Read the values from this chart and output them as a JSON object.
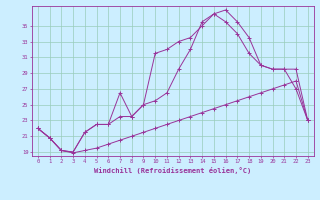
{
  "xlabel": "Windchill (Refroidissement éolien,°C)",
  "bg_color": "#cceeff",
  "line_color": "#993399",
  "grid_color": "#99ccbb",
  "series1_x": [
    0,
    1,
    2,
    3,
    4,
    5,
    6,
    7,
    8,
    9,
    10,
    11,
    12,
    13,
    14,
    15,
    16,
    17,
    18,
    19,
    20,
    21,
    22,
    23
  ],
  "series1_y": [
    22.0,
    20.8,
    19.2,
    18.9,
    19.2,
    19.5,
    20.0,
    20.5,
    21.0,
    21.5,
    22.0,
    22.5,
    23.0,
    23.5,
    24.0,
    24.5,
    25.0,
    25.5,
    26.0,
    26.5,
    27.0,
    27.5,
    28.0,
    23.0
  ],
  "series2_x": [
    0,
    1,
    2,
    3,
    4,
    5,
    6,
    7,
    8,
    9,
    10,
    11,
    12,
    13,
    14,
    15,
    16,
    17,
    18,
    19,
    20,
    21,
    22,
    23
  ],
  "series2_y": [
    22.0,
    20.8,
    19.2,
    19.0,
    21.5,
    22.5,
    22.5,
    26.5,
    23.5,
    25.0,
    25.5,
    26.5,
    29.5,
    32.0,
    35.5,
    36.5,
    35.5,
    34.0,
    31.5,
    30.0,
    29.5,
    29.5,
    27.0,
    23.0
  ],
  "series3_x": [
    0,
    1,
    2,
    3,
    4,
    5,
    6,
    7,
    8,
    9,
    10,
    11,
    12,
    13,
    14,
    15,
    16,
    17,
    18,
    19,
    20,
    21,
    22,
    23
  ],
  "series3_y": [
    22.0,
    20.8,
    19.2,
    19.0,
    21.5,
    22.5,
    22.5,
    23.5,
    23.5,
    25.0,
    31.5,
    32.0,
    33.0,
    33.5,
    35.0,
    36.5,
    37.0,
    35.5,
    33.5,
    30.0,
    29.5,
    29.5,
    29.5,
    23.0
  ],
  "ylim": [
    18.5,
    37.5
  ],
  "xlim": [
    -0.5,
    23.5
  ],
  "yticks": [
    19,
    21,
    23,
    25,
    27,
    29,
    31,
    33,
    35
  ],
  "xticks": [
    0,
    1,
    2,
    3,
    4,
    5,
    6,
    7,
    8,
    9,
    10,
    11,
    12,
    13,
    14,
    15,
    16,
    17,
    18,
    19,
    20,
    21,
    22,
    23
  ],
  "figsize": [
    3.2,
    2.0
  ],
  "dpi": 100
}
